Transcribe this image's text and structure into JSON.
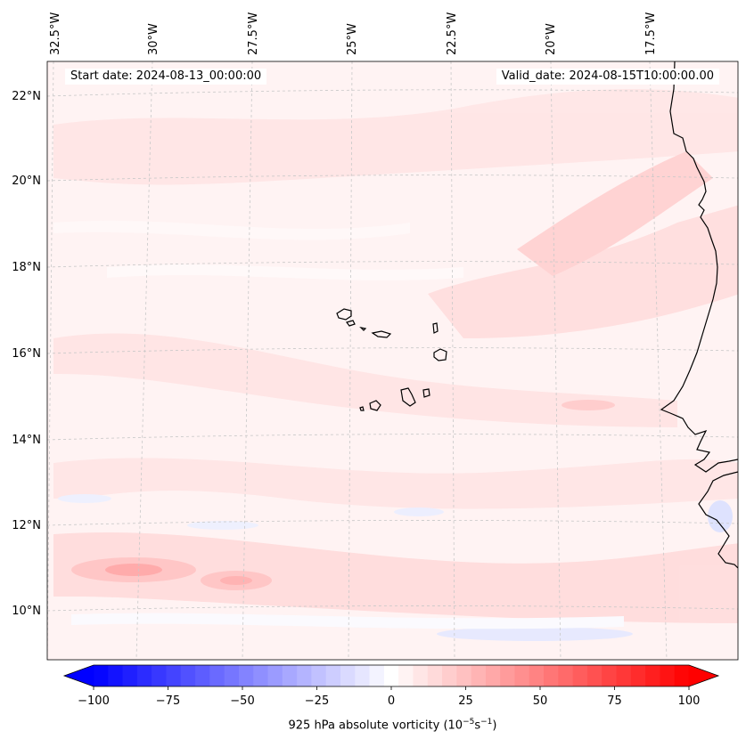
{
  "map": {
    "start_label": "Start date: 2024-08-13_00:00:00",
    "valid_label": "Valid_date: 2024-08-15T10:00:00.00",
    "lon_labels": [
      "32.5°W",
      "30°W",
      "27.5°W",
      "25°W",
      "22.5°W",
      "20°W",
      "17.5°W"
    ],
    "lat_labels": [
      "22°N",
      "20°N",
      "18°N",
      "16°N",
      "14°N",
      "12°N",
      "10°N"
    ],
    "field_variable": "925 hPa absolute vorticity"
  },
  "colorbar": {
    "title_text": "925 hPa absolute vorticity (10",
    "unit_exp1": "−5",
    "unit_mid": "s",
    "unit_exp2": "−1",
    "unit_close": ")",
    "ticks": [
      -100,
      -75,
      -50,
      -25,
      0,
      25,
      50,
      75,
      100
    ],
    "tick_labels": [
      "−100",
      "−75",
      "−50",
      "−25",
      "0",
      "25",
      "50",
      "75",
      "100"
    ],
    "vmin": -100,
    "vmax": 100,
    "levels": 41,
    "negative_color": "#0000ff",
    "zero_color": "#ffffff",
    "positive_color": "#ff0000"
  },
  "colors": {
    "background_field": "#fff5f5",
    "coastline": "#000000",
    "gridline": "#c8c8c8"
  }
}
